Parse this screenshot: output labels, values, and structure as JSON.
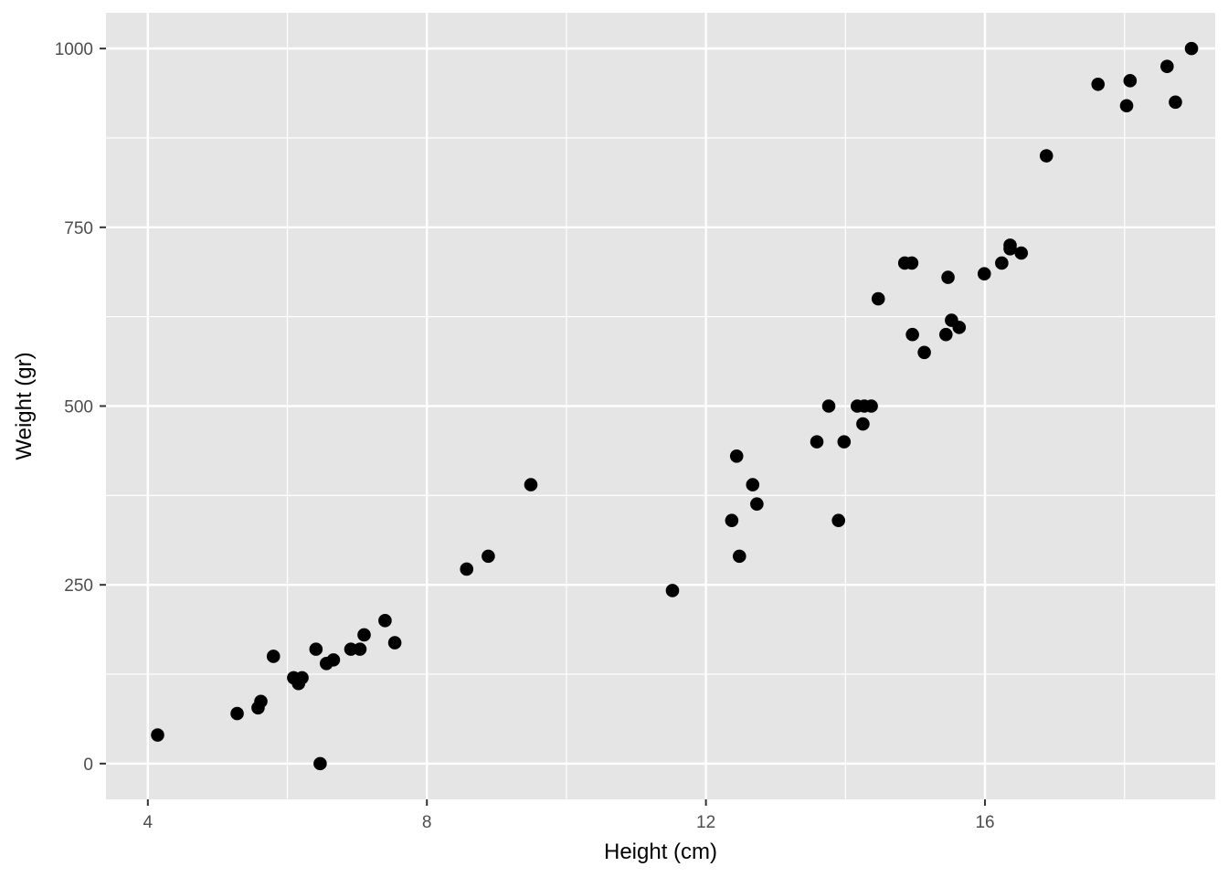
{
  "chart_data": {
    "type": "scatter",
    "xlabel": "Height (cm)",
    "ylabel": "Weight (gr)",
    "xlim": [
      3.4,
      19.3
    ],
    "ylim": [
      -50,
      1050
    ],
    "x_ticks": [
      4,
      8,
      12,
      16
    ],
    "x_tick_labels": [
      "4",
      "8",
      "12",
      "16"
    ],
    "y_ticks": [
      0,
      250,
      500,
      750,
      1000
    ],
    "y_tick_labels": [
      "0",
      "250",
      "500",
      "750",
      "1000"
    ],
    "grid": true,
    "panel_background": "#e5e5e5",
    "grid_color": "#ffffff",
    "point_color": "#000000",
    "points": [
      [
        4.14,
        40
      ],
      [
        5.28,
        70
      ],
      [
        5.58,
        78
      ],
      [
        5.62,
        87
      ],
      [
        5.8,
        150
      ],
      [
        6.09,
        120
      ],
      [
        6.16,
        112
      ],
      [
        6.21,
        120
      ],
      [
        6.41,
        160
      ],
      [
        6.47,
        0
      ],
      [
        6.56,
        140
      ],
      [
        6.66,
        145
      ],
      [
        6.91,
        160
      ],
      [
        7.04,
        160
      ],
      [
        7.1,
        180
      ],
      [
        7.4,
        200
      ],
      [
        7.54,
        169
      ],
      [
        8.57,
        272
      ],
      [
        8.88,
        290
      ],
      [
        9.49,
        390
      ],
      [
        11.52,
        242
      ],
      [
        12.37,
        340
      ],
      [
        12.44,
        430
      ],
      [
        12.48,
        290
      ],
      [
        12.67,
        390
      ],
      [
        12.73,
        363
      ],
      [
        13.59,
        450
      ],
      [
        13.76,
        500
      ],
      [
        13.9,
        340
      ],
      [
        13.98,
        450
      ],
      [
        14.17,
        500
      ],
      [
        14.25,
        475
      ],
      [
        14.27,
        500
      ],
      [
        14.37,
        500
      ],
      [
        14.47,
        650
      ],
      [
        14.85,
        700
      ],
      [
        14.95,
        700
      ],
      [
        14.96,
        600
      ],
      [
        15.13,
        575
      ],
      [
        15.44,
        600
      ],
      [
        15.47,
        680
      ],
      [
        15.52,
        620
      ],
      [
        15.63,
        610
      ],
      [
        15.99,
        685
      ],
      [
        16.24,
        700
      ],
      [
        16.36,
        725
      ],
      [
        16.36,
        720
      ],
      [
        16.52,
        714
      ],
      [
        16.88,
        850
      ],
      [
        17.62,
        950
      ],
      [
        18.03,
        920
      ],
      [
        18.08,
        955
      ],
      [
        18.61,
        975
      ],
      [
        18.73,
        925
      ],
      [
        18.96,
        1000
      ]
    ]
  }
}
